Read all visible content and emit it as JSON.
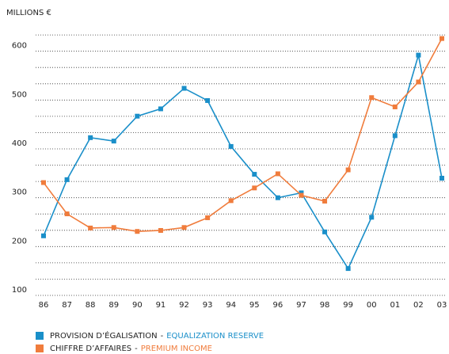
{
  "chart_data": {
    "type": "line",
    "y_axis_label": "MILLIONS €",
    "categories": [
      "86",
      "87",
      "88",
      "89",
      "90",
      "91",
      "92",
      "93",
      "94",
      "95",
      "96",
      "97",
      "98",
      "99",
      "00",
      "01",
      "02",
      "03"
    ],
    "series": [
      {
        "name": "PROVISION D’ÉGALISATION",
        "name_en": "EQUALIZATION RESERVE",
        "color": "#1a8fc9",
        "values": [
          222,
          337,
          423,
          416,
          467,
          482,
          524,
          499,
          405,
          348,
          300,
          310,
          230,
          155,
          260,
          427,
          592,
          340
        ]
      },
      {
        "name": "CHIFFRE D’AFFAIRES",
        "name_en": "PREMIUM INCOME",
        "color": "#f07c3c",
        "values": [
          331,
          267,
          238,
          239,
          231,
          233,
          239,
          259,
          294,
          320,
          349,
          305,
          293,
          357,
          505,
          486,
          537,
          626
        ]
      }
    ],
    "legend_separator": "-",
    "ylim": [
      100,
      640
    ],
    "yticks": [
      100,
      200,
      300,
      400,
      500,
      600
    ],
    "ygrid": [
      100,
      133.3,
      166.7,
      200,
      233.3,
      266.7,
      300,
      333.3,
      366.7,
      400,
      433.3,
      466.7,
      500,
      533.3,
      566.7,
      600,
      633.3
    ],
    "grid": true
  }
}
